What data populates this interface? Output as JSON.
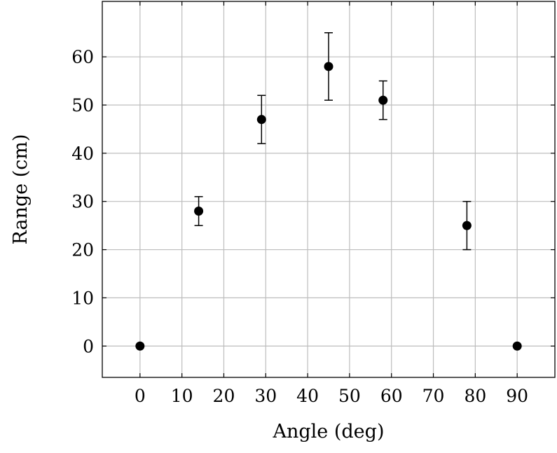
{
  "chart_data": {
    "type": "scatter",
    "title": "",
    "xlabel": "Angle (deg)",
    "ylabel": "Range (cm)",
    "xlim": [
      -9,
      99
    ],
    "ylim": [
      -6.5,
      71.5
    ],
    "xticks": [
      0,
      10,
      20,
      30,
      40,
      50,
      60,
      70,
      80,
      90
    ],
    "yticks": [
      0,
      10,
      20,
      30,
      40,
      50,
      60
    ],
    "grid": true,
    "series": [
      {
        "marker": "filled-circle",
        "color": "#000000",
        "points": [
          {
            "x": 0,
            "y": 0,
            "err_minus": 0,
            "err_plus": 0
          },
          {
            "x": 14,
            "y": 28,
            "err_minus": 3,
            "err_plus": 3
          },
          {
            "x": 29,
            "y": 47,
            "err_minus": 5,
            "err_plus": 5
          },
          {
            "x": 45,
            "y": 58,
            "err_minus": 7,
            "err_plus": 7
          },
          {
            "x": 58,
            "y": 51,
            "err_minus": 4,
            "err_plus": 4
          },
          {
            "x": 78,
            "y": 25,
            "err_minus": 5,
            "err_plus": 5
          },
          {
            "x": 90,
            "y": 0,
            "err_minus": 0,
            "err_plus": 0
          }
        ]
      }
    ]
  }
}
